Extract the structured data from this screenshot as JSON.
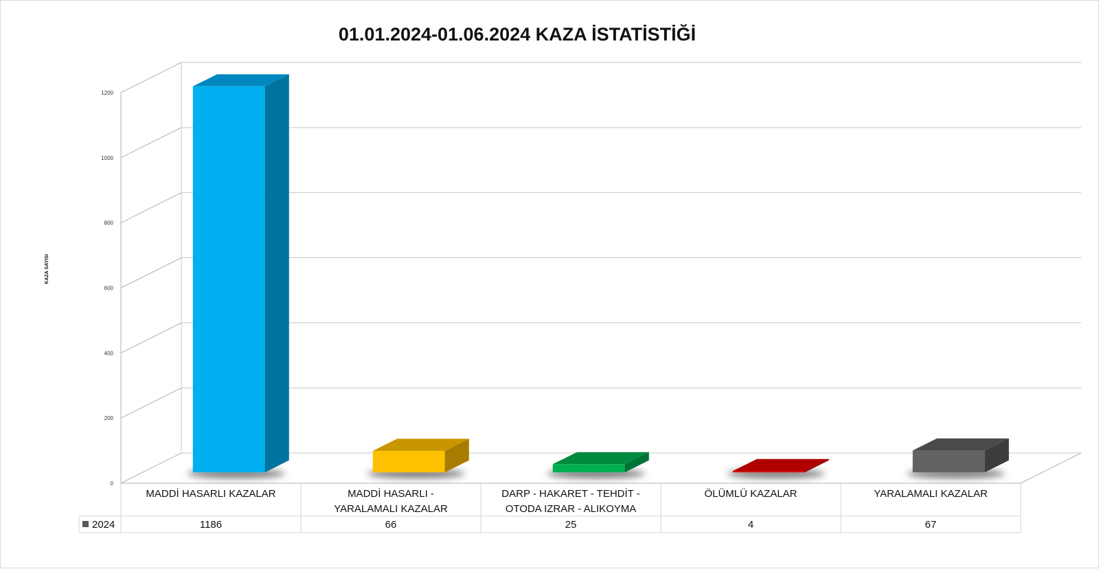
{
  "chart_data": {
    "type": "bar",
    "style": "3d-column-with-data-table",
    "title": "01.01.2024-01.06.2024 KAZA İSTATİSTİĞİ",
    "ylabel": "KAZA SAYISI",
    "xlabel": "",
    "ylim": [
      0,
      1200
    ],
    "yticks": [
      0,
      200,
      400,
      600,
      800,
      1000,
      1200
    ],
    "grid": true,
    "legend_placement": "data-table-left",
    "categories": [
      [
        "MADDİ HASARLI KAZALAR"
      ],
      [
        "MADDİ HASARLI -",
        "YARALAMALI KAZALAR"
      ],
      [
        "DARP - HAKARET - TEHDİT -",
        "OTODA IZRAR - ALIKOYMA"
      ],
      [
        "ÖLÜMLÜ KAZALAR"
      ],
      [
        "YARALAMALI KAZALAR"
      ]
    ],
    "series": [
      {
        "name": "2024",
        "values": [
          1186,
          66,
          25,
          4,
          67
        ]
      }
    ],
    "legend_marker_color": "#595959",
    "bar_colors": [
      {
        "front": "#00b0f0",
        "top": "#0087c0",
        "side": "#00739f"
      },
      {
        "front": "#ffc000",
        "top": "#c99600",
        "side": "#a87c00"
      },
      {
        "front": "#00b050",
        "top": "#008a3e",
        "side": "#007334"
      },
      {
        "front": "#e00000",
        "top": "#b00000",
        "side": "#900000"
      },
      {
        "front": "#636363",
        "top": "#4a4a4a",
        "side": "#3c3c3c"
      }
    ]
  }
}
